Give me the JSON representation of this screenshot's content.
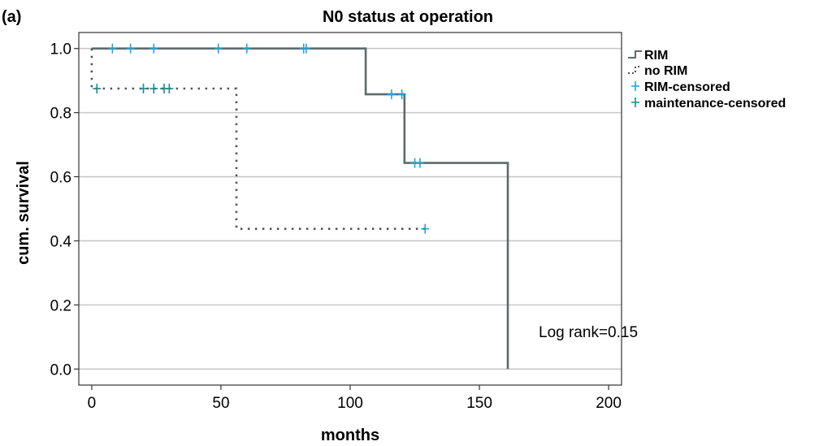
{
  "panel_label": "(a)",
  "chart_data": {
    "type": "line",
    "title": "N0 status at operation",
    "xlabel": "months",
    "ylabel": "cum. survival",
    "xlim": [
      -5,
      205
    ],
    "ylim": [
      -0.05,
      1.05
    ],
    "x_ticks": [
      0,
      50,
      100,
      150,
      200
    ],
    "y_ticks": [
      0.0,
      0.2,
      0.4,
      0.6,
      0.8,
      1.0
    ],
    "y_tick_labels": [
      "0.0",
      "0.2",
      "0.4",
      "0.6",
      "0.8",
      "1.0"
    ],
    "grid": "horizontal",
    "legend_position": "right",
    "legend": [
      "RIM",
      "no RIM",
      "RIM-censored",
      "maintenance-censored"
    ],
    "annotation": "Log rank=0.15",
    "colors": {
      "rim": "#5f6b6b",
      "no_rim": "#555555",
      "rim_censored": "#2a9fd6",
      "maintenance_censored": "#1f8a8a",
      "grid": "#c8c8c8",
      "axis": "#333333"
    },
    "series": [
      {
        "name": "RIM",
        "style": "solid step",
        "steps": [
          [
            0,
            1.0
          ],
          [
            106,
            1.0
          ],
          [
            106,
            0.857
          ],
          [
            121,
            0.857
          ],
          [
            121,
            0.643
          ],
          [
            161,
            0.643
          ],
          [
            161,
            0.0
          ]
        ],
        "censored_rim": [
          [
            8,
            1.0
          ],
          [
            15,
            1.0
          ],
          [
            24,
            1.0
          ],
          [
            49,
            1.0
          ],
          [
            60,
            1.0
          ],
          [
            82,
            1.0
          ],
          [
            83,
            1.0
          ],
          [
            116,
            0.857
          ],
          [
            120,
            0.857
          ],
          [
            125,
            0.643
          ],
          [
            127,
            0.643
          ]
        ],
        "censored_maintenance": []
      },
      {
        "name": "no RIM",
        "style": "dotted step",
        "steps": [
          [
            0,
            1.0
          ],
          [
            0,
            0.875
          ],
          [
            56,
            0.875
          ],
          [
            56,
            0.4375
          ],
          [
            129,
            0.4375
          ]
        ],
        "censored_rim": [
          [
            129,
            0.4375
          ]
        ],
        "censored_maintenance": [
          [
            2,
            0.875
          ],
          [
            20,
            0.875
          ],
          [
            24,
            0.875
          ],
          [
            28,
            0.875
          ],
          [
            30,
            0.875
          ]
        ]
      }
    ]
  }
}
